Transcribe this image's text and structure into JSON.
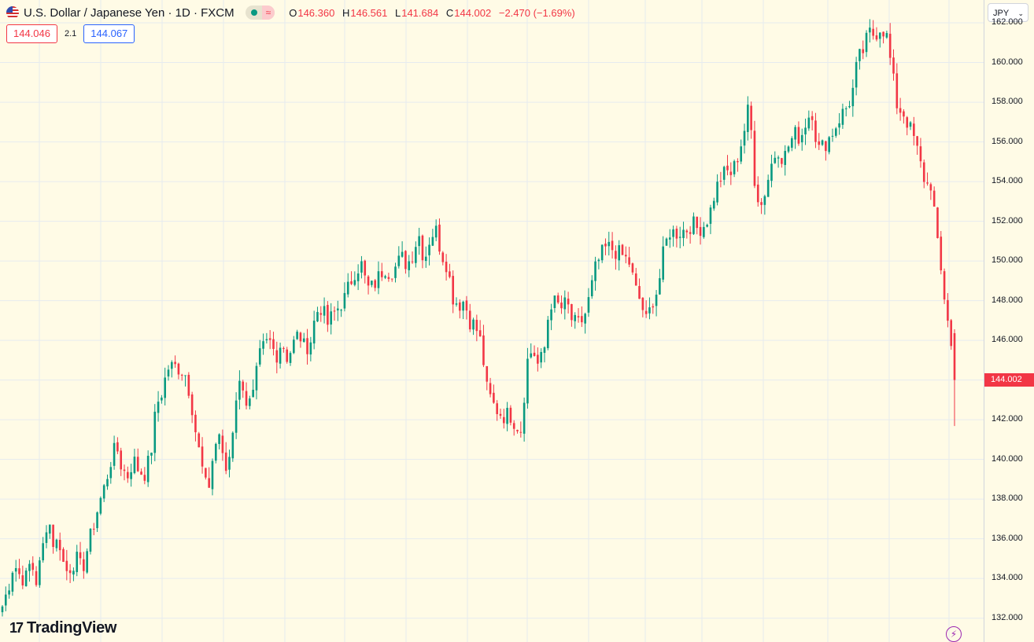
{
  "header": {
    "symbol_title": "U.S. Dollar / Japanese Yen · 1D · FXCM",
    "approx_icon": "≈",
    "ohlc": {
      "o_key": "O",
      "o_val": "146.360",
      "h_key": "H",
      "h_val": "146.561",
      "l_key": "L",
      "l_val": "141.684",
      "c_key": "C",
      "c_val": "144.002",
      "change": "−2.470 (−1.69%)"
    }
  },
  "quote": {
    "sell": "144.046",
    "spread": "2.1",
    "buy": "144.067"
  },
  "price_axis": {
    "currency": "JPY",
    "last_price_label": "144.002"
  },
  "branding": {
    "logo_text": "TradingView"
  },
  "colors": {
    "up": "#089981",
    "down": "#f23645",
    "background": "#fffbe6",
    "grid": "#e6ebef"
  },
  "chart_data": {
    "type": "candlestick",
    "y_ticks": [
      "162.000",
      "160.000",
      "158.000",
      "156.000",
      "154.000",
      "152.000",
      "150.000",
      "148.000",
      "146.000",
      "144.000",
      "142.000",
      "140.000",
      "138.000",
      "136.000",
      "134.000",
      "132.000"
    ],
    "ylim": [
      130.8,
      163.15
    ],
    "grid": true,
    "last_close": 144.002,
    "series": [
      {
        "name": "USDJPY",
        "close_path": [
          132.6,
          133.5,
          134.8,
          134.2,
          133.9,
          134.9,
          133.8,
          135.4,
          137.2,
          135.7,
          135.9,
          134.3,
          134.6,
          135.0,
          134.4,
          135.6,
          136.7,
          137.8,
          138.7,
          139.9,
          140.7,
          139.5,
          139.2,
          140.0,
          139.4,
          139.3,
          140.2,
          142.7,
          143.4,
          144.6,
          144.7,
          144.6,
          144.4,
          143.2,
          141.2,
          139.6,
          138.2,
          140.3,
          141.4,
          139.2,
          140.4,
          143.2,
          144.1,
          142.6,
          143.2,
          145.1,
          145.8,
          145.9,
          145.2,
          146.0,
          145.1,
          145.8,
          146.4,
          145.6,
          145.9,
          147.4,
          147.7,
          146.8,
          147.3,
          147.7,
          148.1,
          148.9,
          149.6,
          149.8,
          148.6,
          148.7,
          149.2,
          149.7,
          149.4,
          149.7,
          150.2,
          149.8,
          150.4,
          151.4,
          150.0,
          151.2,
          151.6,
          150.4,
          149.8,
          148.2,
          147.8,
          148.0,
          147.0,
          146.7,
          145.8,
          143.5,
          142.8,
          142.4,
          142.2,
          142.3,
          141.8,
          141.5,
          144.9,
          145.6,
          144.7,
          145.4,
          147.9,
          147.9,
          147.6,
          147.9,
          146.9,
          146.8,
          147.1,
          148.2,
          149.6,
          150.3,
          150.7,
          150.6,
          150.4,
          150.2,
          149.9,
          148.6,
          147.9,
          146.9,
          148.0,
          148.6,
          150.5,
          151.5,
          151.4,
          151.5,
          151.6,
          151.9,
          151.6,
          151.8,
          152.3,
          153.5,
          154.2,
          154.5,
          154.4,
          155.3,
          156.4,
          157.9,
          153.9,
          152.7,
          153.8,
          155.0,
          155.7,
          155.1,
          155.9,
          156.4,
          156.2,
          157.1,
          157.6,
          155.6,
          155.8,
          156.2,
          156.7,
          157.3,
          157.7,
          158.3,
          160.1,
          160.6,
          161.5,
          161.4,
          161.8,
          161.5,
          159.6,
          157.7,
          157.5,
          156.8,
          156.1,
          154.9,
          153.8,
          153.9,
          150.8,
          148.6,
          146.8,
          144.002
        ]
      }
    ]
  }
}
